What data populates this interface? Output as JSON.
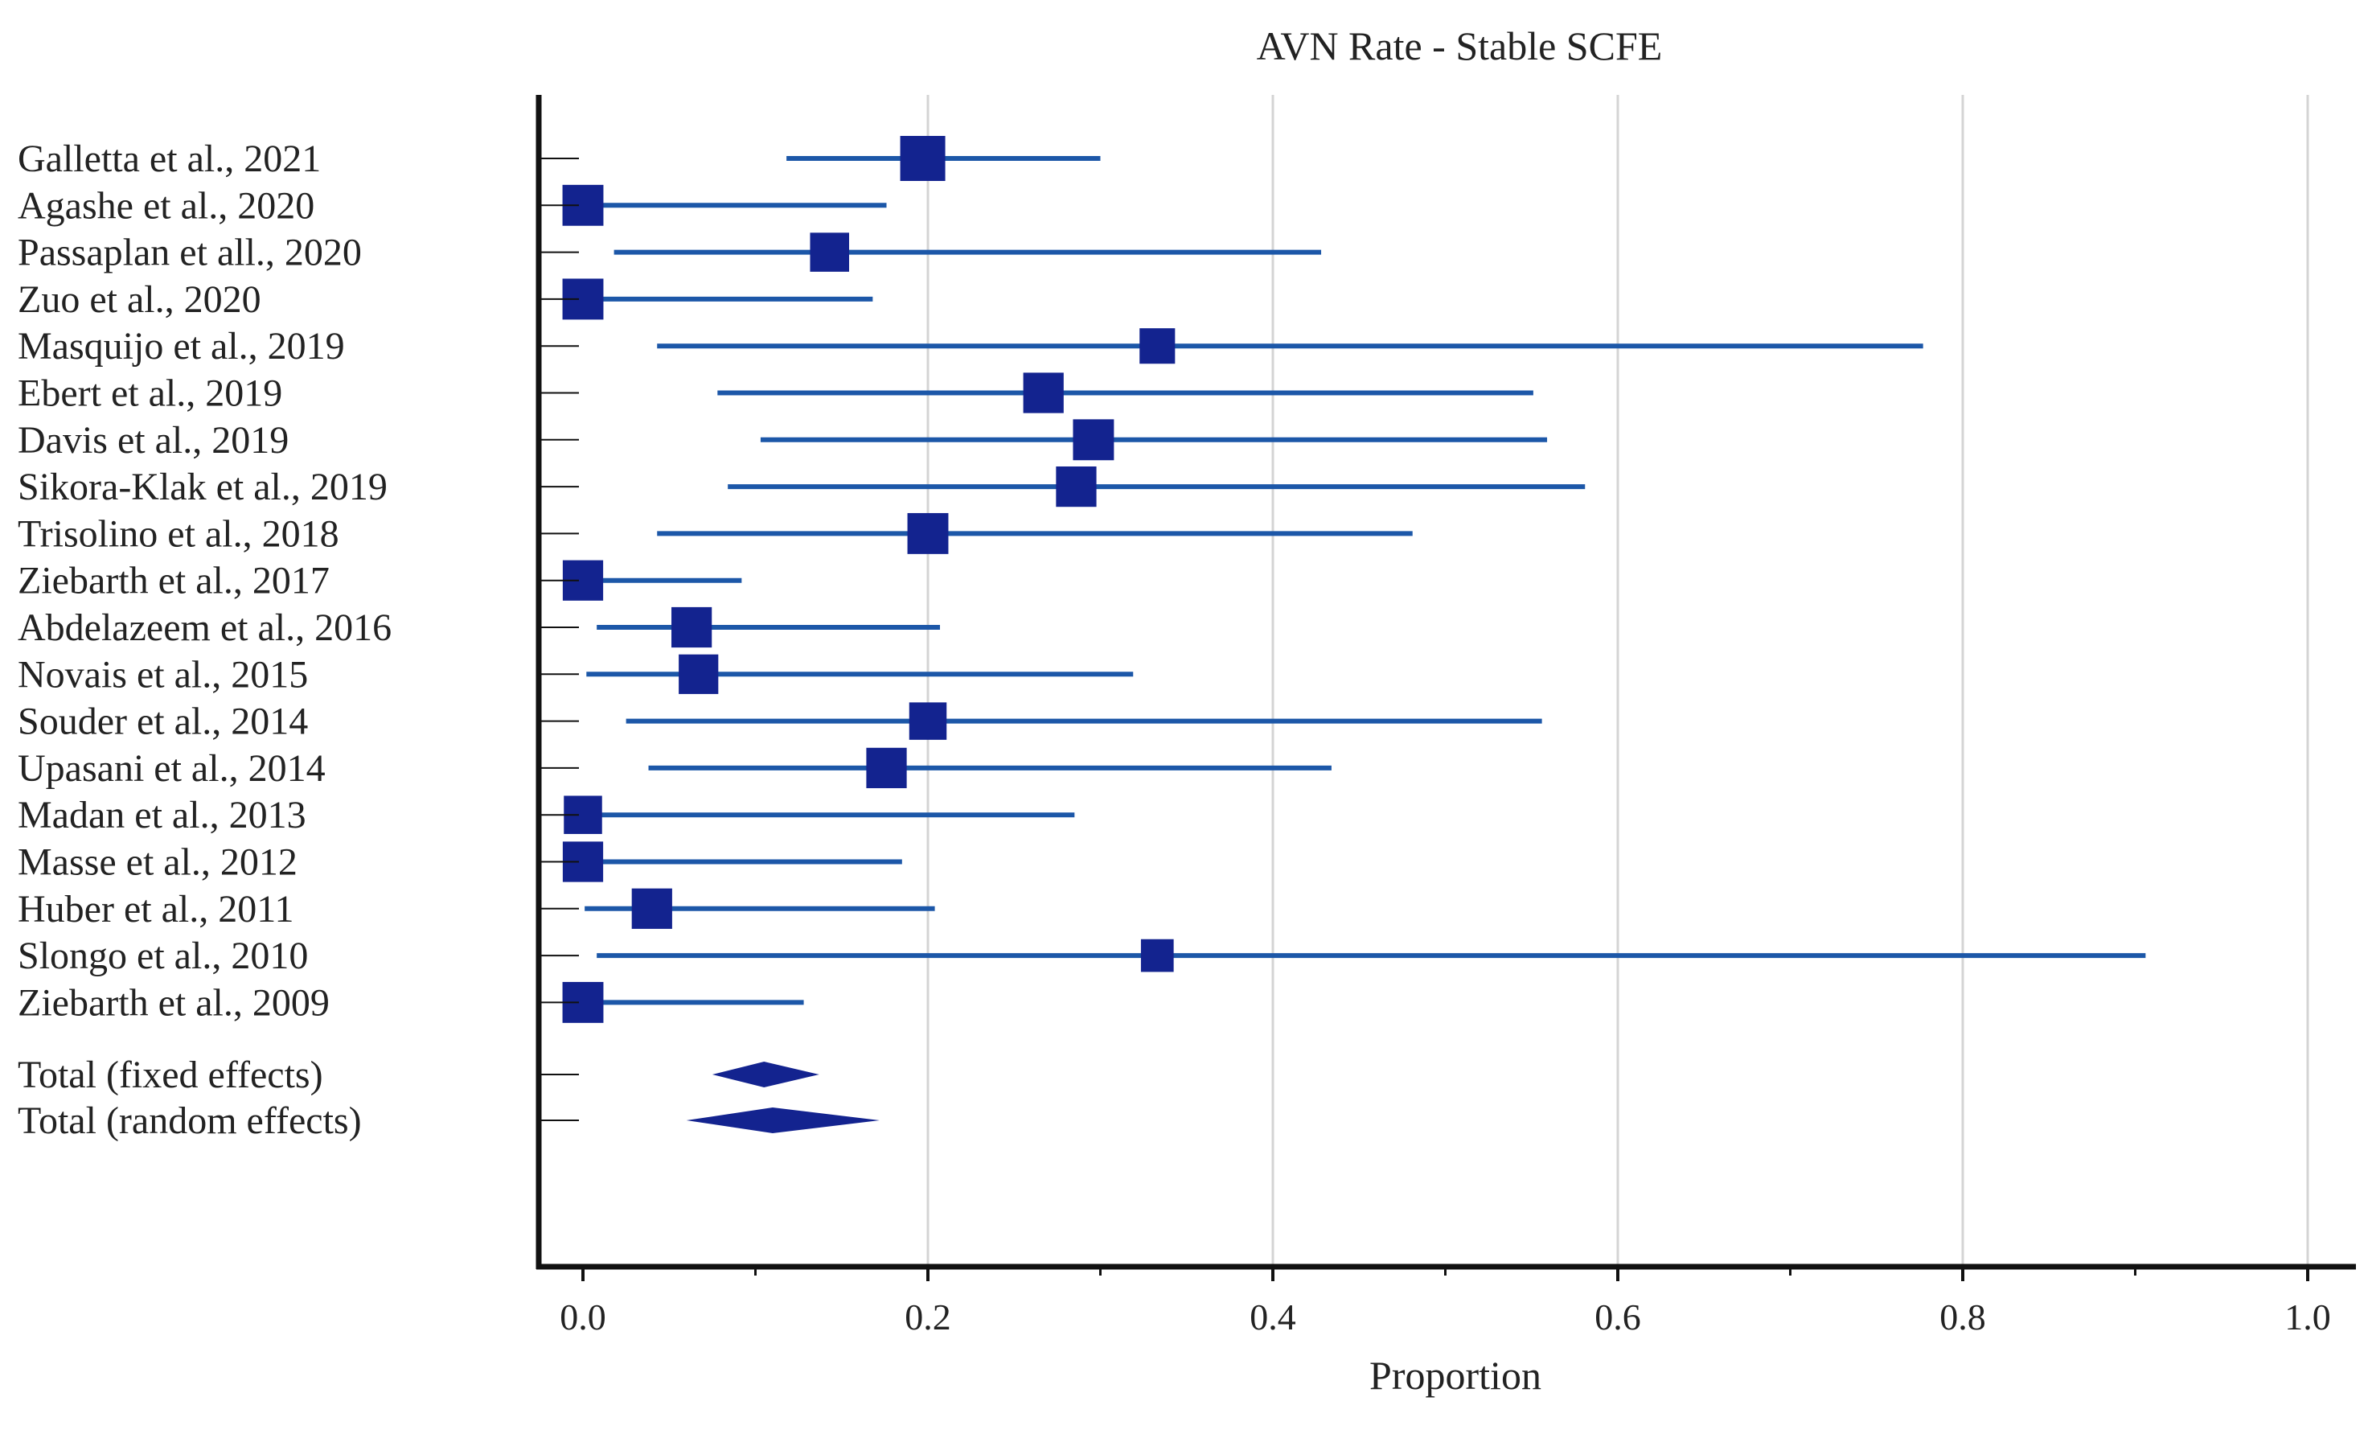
{
  "colors": {
    "marker": "#13238f",
    "ci_line": "#1c57a8",
    "axis": "#111111",
    "grid": "#d4d4d4",
    "text": "#222222"
  },
  "chart_data": {
    "type": "forest",
    "title": "AVN Rate - Stable SCFE",
    "xlabel": "Proportion",
    "xlim": [
      0,
      1.0
    ],
    "x_ticks": [
      "0.0",
      "0.2",
      "0.4",
      "0.6",
      "0.8",
      "1.0"
    ],
    "x_tick_values": [
      0,
      0.2,
      0.4,
      0.6,
      0.8,
      1.0
    ],
    "grid": true,
    "studies": [
      {
        "label": "Galletta et al., 2021",
        "estimate": 0.197,
        "ci_low": 0.118,
        "ci_high": 0.3,
        "weight": 1.0
      },
      {
        "label": "Agashe et al., 2020",
        "estimate": 0.0,
        "ci_low": 0.0,
        "ci_high": 0.176,
        "weight": 0.85
      },
      {
        "label": "Passaplan et all., 2020",
        "estimate": 0.143,
        "ci_low": 0.018,
        "ci_high": 0.428,
        "weight": 0.78
      },
      {
        "label": "Zuo et al., 2020",
        "estimate": 0.0,
        "ci_low": 0.0,
        "ci_high": 0.168,
        "weight": 0.85
      },
      {
        "label": "Masquijo et al., 2019",
        "estimate": 0.333,
        "ci_low": 0.043,
        "ci_high": 0.777,
        "weight": 0.65
      },
      {
        "label": "Ebert et al., 2019",
        "estimate": 0.267,
        "ci_low": 0.078,
        "ci_high": 0.551,
        "weight": 0.83
      },
      {
        "label": "Davis et al., 2019",
        "estimate": 0.296,
        "ci_low": 0.103,
        "ci_high": 0.559,
        "weight": 0.85
      },
      {
        "label": "Sikora-Klak et al., 2019",
        "estimate": 0.286,
        "ci_low": 0.084,
        "ci_high": 0.581,
        "weight": 0.83
      },
      {
        "label": "Trisolino et al., 2018",
        "estimate": 0.2,
        "ci_low": 0.043,
        "ci_high": 0.481,
        "weight": 0.85
      },
      {
        "label": "Ziebarth et al., 2017",
        "estimate": 0.0,
        "ci_low": 0.0,
        "ci_high": 0.092,
        "weight": 0.83
      },
      {
        "label": "Abdelazeem et al., 2016",
        "estimate": 0.063,
        "ci_low": 0.008,
        "ci_high": 0.207,
        "weight": 0.83
      },
      {
        "label": "Novais et al., 2015",
        "estimate": 0.067,
        "ci_low": 0.002,
        "ci_high": 0.319,
        "weight": 0.8
      },
      {
        "label": "Souder et al., 2014",
        "estimate": 0.2,
        "ci_low": 0.025,
        "ci_high": 0.556,
        "weight": 0.72
      },
      {
        "label": "Upasani et al., 2014",
        "estimate": 0.176,
        "ci_low": 0.038,
        "ci_high": 0.434,
        "weight": 0.83
      },
      {
        "label": "Madan et al., 2013",
        "estimate": 0.0,
        "ci_low": 0.0,
        "ci_high": 0.285,
        "weight": 0.75
      },
      {
        "label": "Masse et al., 2012",
        "estimate": 0.0,
        "ci_low": 0.0,
        "ci_high": 0.185,
        "weight": 0.83
      },
      {
        "label": "Huber et al., 2011",
        "estimate": 0.04,
        "ci_low": 0.001,
        "ci_high": 0.204,
        "weight": 0.83
      },
      {
        "label": "Slongo et al., 2010",
        "estimate": 0.333,
        "ci_low": 0.008,
        "ci_high": 0.906,
        "weight": 0.55
      },
      {
        "label": "Ziebarth et al., 2009",
        "estimate": 0.0,
        "ci_low": 0.0,
        "ci_high": 0.128,
        "weight": 0.85
      }
    ],
    "totals": [
      {
        "label": "Total (fixed effects)",
        "estimate": 0.105,
        "ci_low": 0.075,
        "ci_high": 0.137
      },
      {
        "label": "Total (random effects)",
        "estimate": 0.11,
        "ci_low": 0.06,
        "ci_high": 0.172
      }
    ]
  }
}
